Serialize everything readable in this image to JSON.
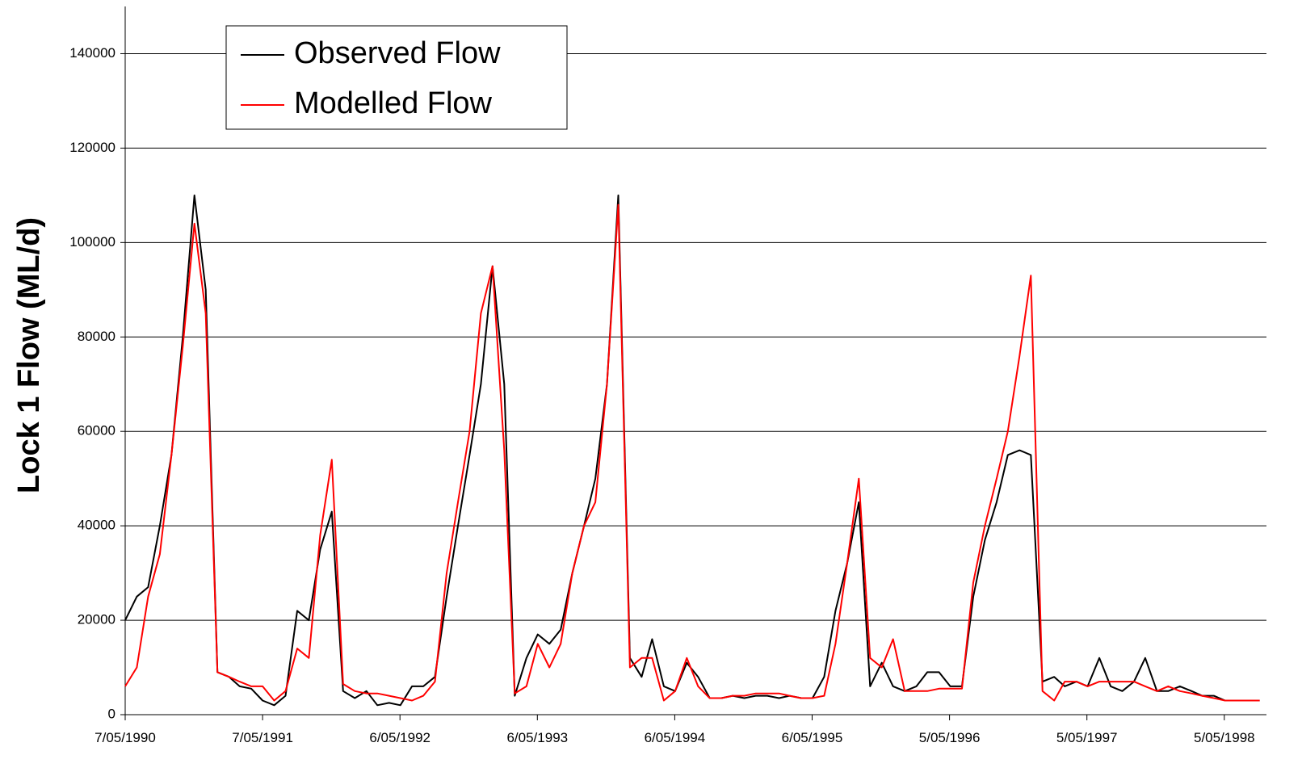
{
  "chart_data": {
    "type": "line",
    "ylabel": "Lock 1 Flow (ML/d)",
    "x": [
      "1990-05-07",
      "1990-06-07",
      "1990-07-07",
      "1990-08-07",
      "1990-09-07",
      "1990-10-07",
      "1990-11-07",
      "1990-12-07",
      "1991-01-07",
      "1991-02-07",
      "1991-03-07",
      "1991-04-07",
      "1991-05-07",
      "1991-06-07",
      "1991-07-07",
      "1991-08-07",
      "1991-09-07",
      "1991-10-07",
      "1991-11-07",
      "1991-12-07",
      "1992-01-07",
      "1992-02-07",
      "1992-03-07",
      "1992-04-07",
      "1992-05-07",
      "1992-06-07",
      "1992-07-07",
      "1992-08-07",
      "1992-09-07",
      "1992-10-07",
      "1992-11-07",
      "1992-12-07",
      "1993-01-07",
      "1993-02-07",
      "1993-03-07",
      "1993-04-07",
      "1993-05-07",
      "1993-06-07",
      "1993-07-07",
      "1993-08-07",
      "1993-09-07",
      "1993-10-07",
      "1993-11-07",
      "1993-12-07",
      "1994-01-07",
      "1994-02-07",
      "1994-03-07",
      "1994-04-07",
      "1994-05-07",
      "1994-06-07",
      "1994-07-07",
      "1994-08-07",
      "1994-09-07",
      "1994-10-07",
      "1994-11-07",
      "1994-12-07",
      "1995-01-07",
      "1995-02-07",
      "1995-03-07",
      "1995-04-07",
      "1995-05-07",
      "1995-06-07",
      "1995-07-07",
      "1995-08-07",
      "1995-09-07",
      "1995-10-07",
      "1995-11-07",
      "1995-12-07",
      "1996-01-07",
      "1996-02-07",
      "1996-03-07",
      "1996-04-07",
      "1996-05-07",
      "1996-06-07",
      "1996-07-07",
      "1996-08-07",
      "1996-09-07",
      "1996-10-07",
      "1996-11-07",
      "1996-12-07",
      "1997-01-07",
      "1997-02-07",
      "1997-03-07",
      "1997-04-07",
      "1997-05-07",
      "1997-06-07",
      "1997-07-07",
      "1997-08-07",
      "1997-09-07",
      "1997-10-07",
      "1997-11-07",
      "1997-12-07",
      "1998-01-07",
      "1998-02-07",
      "1998-03-07",
      "1998-04-07",
      "1998-05-07",
      "1998-06-07",
      "1998-07-07",
      "1998-08-07"
    ],
    "series": [
      {
        "name": "Observed Flow",
        "color": "#000000",
        "values": [
          20000,
          25000,
          27000,
          40000,
          55000,
          80000,
          110000,
          90000,
          9000,
          8000,
          6000,
          5500,
          3000,
          2000,
          4000,
          22000,
          20000,
          35000,
          43000,
          5000,
          3500,
          5000,
          2000,
          2500,
          2000,
          6000,
          6000,
          8000,
          25000,
          40000,
          55000,
          70000,
          95000,
          70000,
          4000,
          12000,
          17000,
          15000,
          18000,
          30000,
          40000,
          50000,
          70000,
          110000,
          12000,
          8000,
          16000,
          6000,
          5000,
          11000,
          8000,
          3500,
          3500,
          4000,
          3500,
          4000,
          4000,
          3500,
          4000,
          3500,
          3500,
          8000,
          22000,
          32000,
          45000,
          6000,
          11000,
          6000,
          5000,
          6000,
          9000,
          9000,
          6000,
          6000,
          25000,
          37000,
          45000,
          55000,
          56000,
          55000,
          7000,
          8000,
          6000,
          7000,
          6000,
          12000,
          6000,
          5000,
          7000,
          12000,
          5000,
          5000,
          6000,
          5000,
          4000,
          4000,
          3000,
          3000,
          3000,
          3000
        ]
      },
      {
        "name": "Modelled Flow",
        "color": "#ff0000",
        "values": [
          6000,
          10000,
          25000,
          34000,
          55000,
          78000,
          104000,
          85000,
          9000,
          8000,
          7000,
          6000,
          6000,
          3000,
          5000,
          14000,
          12000,
          38000,
          54000,
          6500,
          5000,
          4500,
          4500,
          4000,
          3500,
          3000,
          4000,
          7000,
          30000,
          45000,
          60000,
          85000,
          95000,
          56000,
          4500,
          6000,
          15000,
          10000,
          15000,
          30000,
          40000,
          45000,
          70000,
          108000,
          10000,
          12000,
          12000,
          3000,
          5000,
          12000,
          6000,
          3500,
          3500,
          4000,
          4000,
          4500,
          4500,
          4500,
          4000,
          3500,
          3500,
          4000,
          15000,
          32000,
          50000,
          12000,
          10000,
          16000,
          5000,
          5000,
          5000,
          5500,
          5500,
          5500,
          28000,
          40000,
          50000,
          60000,
          76000,
          93000,
          5000,
          3000,
          7000,
          7000,
          6000,
          7000,
          7000,
          7000,
          7000,
          6000,
          5000,
          6000,
          5000,
          4500,
          4000,
          3500,
          3000,
          3000,
          3000,
          3000
        ]
      }
    ],
    "xlim": [
      "1990-05-07",
      "1998-08-25"
    ],
    "xticks": [
      {
        "value": "1990-05-07",
        "label": "7/05/1990"
      },
      {
        "value": "1991-05-07",
        "label": "7/05/1991"
      },
      {
        "value": "1992-05-06",
        "label": "6/05/1992"
      },
      {
        "value": "1993-05-06",
        "label": "6/05/1993"
      },
      {
        "value": "1994-05-06",
        "label": "6/05/1994"
      },
      {
        "value": "1995-05-06",
        "label": "6/05/1995"
      },
      {
        "value": "1996-05-05",
        "label": "5/05/1996"
      },
      {
        "value": "1997-05-05",
        "label": "5/05/1997"
      },
      {
        "value": "1998-05-05",
        "label": "5/05/1998"
      }
    ],
    "ylim": [
      0,
      150000
    ],
    "yticks": [
      0,
      20000,
      40000,
      60000,
      80000,
      100000,
      120000,
      140000
    ],
    "grid": true
  }
}
